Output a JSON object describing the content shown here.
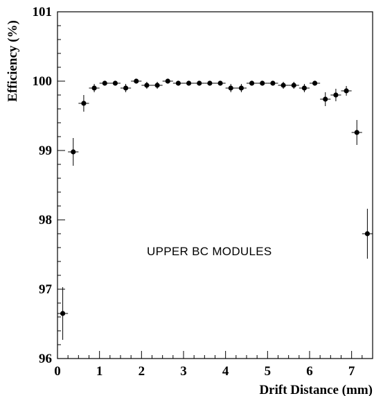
{
  "chart_data": {
    "type": "scatter",
    "title": "",
    "xlabel": "Drift Distance (mm)",
    "ylabel": "Efficiency (%)",
    "xlim": [
      0,
      7.5
    ],
    "ylim": [
      96,
      101
    ],
    "xticks": [
      0,
      1,
      2,
      3,
      4,
      5,
      6,
      7
    ],
    "yticks": [
      96,
      97,
      98,
      99,
      100,
      101
    ],
    "grid": false,
    "legend": "none",
    "annotation": "UPPER BC MODULES",
    "series": [
      {
        "points": [
          {
            "x": 0.125,
            "y": 96.65,
            "yerr": 0.38,
            "xerr": 0.125
          },
          {
            "x": 0.375,
            "y": 98.98,
            "yerr": 0.2,
            "xerr": 0.125
          },
          {
            "x": 0.625,
            "y": 99.68,
            "yerr": 0.12,
            "xerr": 0.125
          },
          {
            "x": 0.875,
            "y": 99.9,
            "yerr": 0.06,
            "xerr": 0.125
          },
          {
            "x": 1.125,
            "y": 99.97,
            "yerr": 0.03,
            "xerr": 0.125
          },
          {
            "x": 1.375,
            "y": 99.97,
            "yerr": 0.03,
            "xerr": 0.125
          },
          {
            "x": 1.625,
            "y": 99.9,
            "yerr": 0.06,
            "xerr": 0.125
          },
          {
            "x": 1.875,
            "y": 100.0,
            "yerr": 0.02,
            "xerr": 0.125
          },
          {
            "x": 2.125,
            "y": 99.94,
            "yerr": 0.05,
            "xerr": 0.125
          },
          {
            "x": 2.375,
            "y": 99.94,
            "yerr": 0.05,
            "xerr": 0.125
          },
          {
            "x": 2.625,
            "y": 100.0,
            "yerr": 0.02,
            "xerr": 0.125
          },
          {
            "x": 2.875,
            "y": 99.97,
            "yerr": 0.03,
            "xerr": 0.125
          },
          {
            "x": 3.125,
            "y": 99.97,
            "yerr": 0.03,
            "xerr": 0.125
          },
          {
            "x": 3.375,
            "y": 99.97,
            "yerr": 0.03,
            "xerr": 0.125
          },
          {
            "x": 3.625,
            "y": 99.97,
            "yerr": 0.03,
            "xerr": 0.125
          },
          {
            "x": 3.875,
            "y": 99.97,
            "yerr": 0.03,
            "xerr": 0.125
          },
          {
            "x": 4.125,
            "y": 99.9,
            "yerr": 0.06,
            "xerr": 0.125
          },
          {
            "x": 4.375,
            "y": 99.9,
            "yerr": 0.06,
            "xerr": 0.125
          },
          {
            "x": 4.625,
            "y": 99.97,
            "yerr": 0.03,
            "xerr": 0.125
          },
          {
            "x": 4.875,
            "y": 99.97,
            "yerr": 0.03,
            "xerr": 0.125
          },
          {
            "x": 5.125,
            "y": 99.97,
            "yerr": 0.03,
            "xerr": 0.125
          },
          {
            "x": 5.375,
            "y": 99.94,
            "yerr": 0.05,
            "xerr": 0.125
          },
          {
            "x": 5.625,
            "y": 99.94,
            "yerr": 0.05,
            "xerr": 0.125
          },
          {
            "x": 5.875,
            "y": 99.9,
            "yerr": 0.06,
            "xerr": 0.125
          },
          {
            "x": 6.125,
            "y": 99.97,
            "yerr": 0.03,
            "xerr": 0.125
          },
          {
            "x": 6.375,
            "y": 99.74,
            "yerr": 0.1,
            "xerr": 0.125
          },
          {
            "x": 6.625,
            "y": 99.8,
            "yerr": 0.09,
            "xerr": 0.125
          },
          {
            "x": 6.875,
            "y": 99.86,
            "yerr": 0.07,
            "xerr": 0.125
          },
          {
            "x": 7.125,
            "y": 99.26,
            "yerr": 0.18,
            "xerr": 0.125
          },
          {
            "x": 7.375,
            "y": 97.8,
            "yerr": 0.36,
            "xerr": 0.125
          }
        ]
      }
    ]
  }
}
